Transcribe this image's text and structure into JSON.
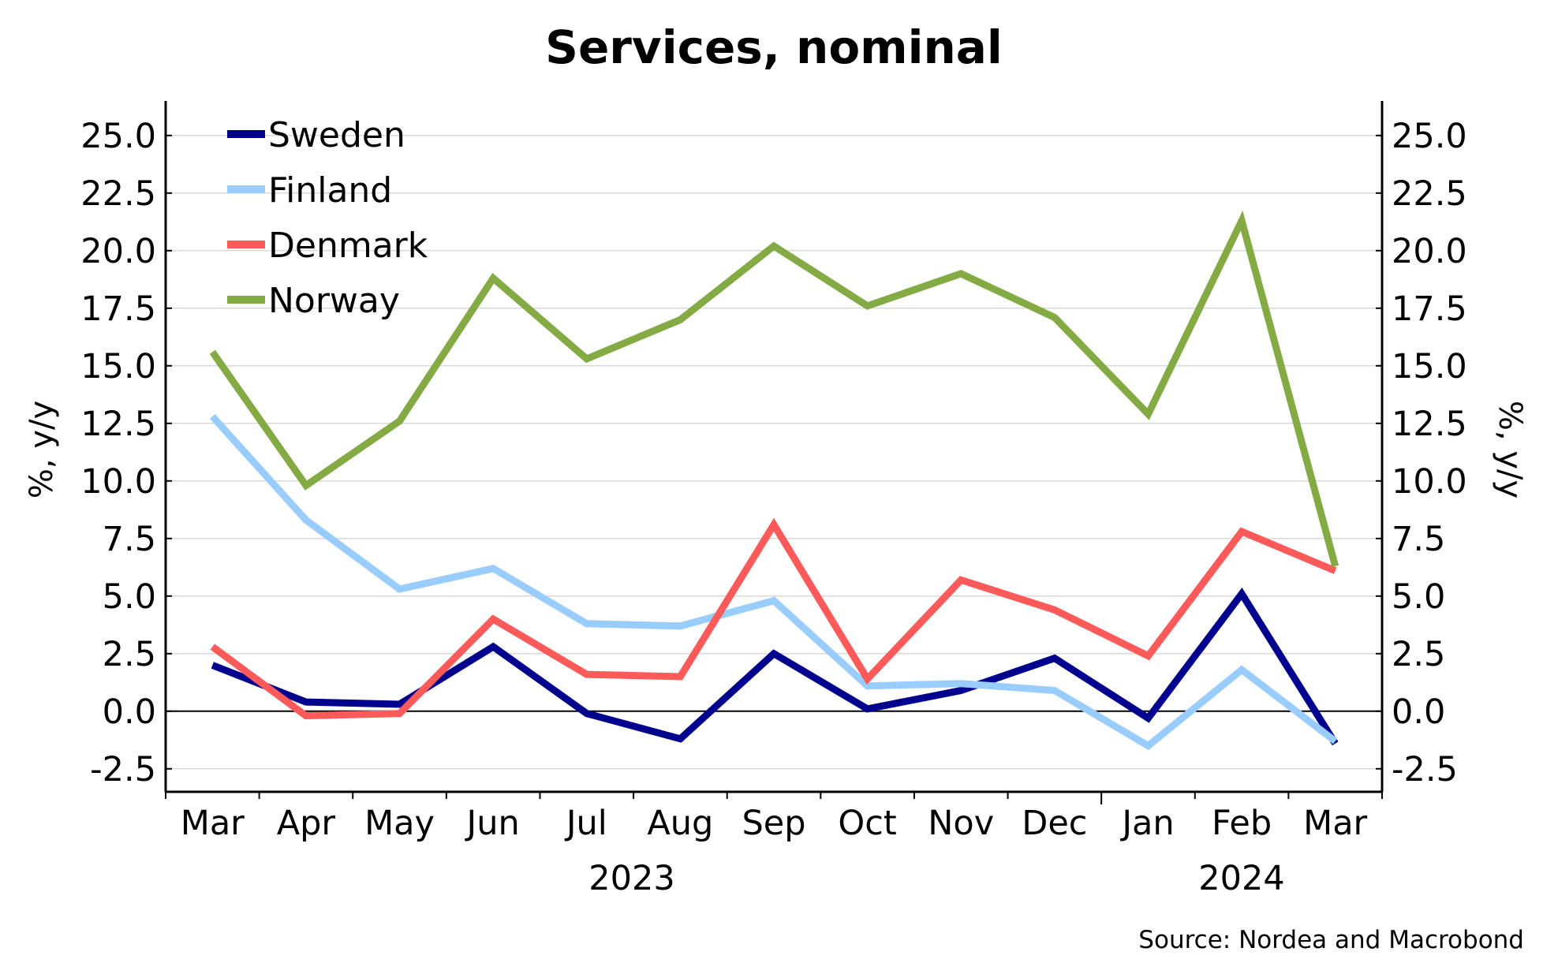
{
  "chart_data": {
    "type": "line",
    "title": "Services, nominal",
    "ylabel_left": "%, y/y",
    "ylabel_right": "%, y/y",
    "ylim": [
      -3.5,
      26.5
    ],
    "yticks": [
      "25.0",
      "22.5",
      "20.0",
      "17.5",
      "15.0",
      "12.5",
      "10.0",
      "7.5",
      "5.0",
      "2.5",
      "0.0",
      "-2.5"
    ],
    "categories": [
      "Mar",
      "Apr",
      "May",
      "Jun",
      "Jul",
      "Aug",
      "Sep",
      "Oct",
      "Nov",
      "Dec",
      "Jan",
      "Feb",
      "Mar"
    ],
    "year_labels": [
      "2023",
      "2024"
    ],
    "legend_position": "top-left",
    "grid": true,
    "series": [
      {
        "name": "Sweden",
        "color": "#00008f",
        "values": [
          2.0,
          0.4,
          0.3,
          2.8,
          -0.1,
          -1.2,
          2.5,
          0.1,
          0.9,
          2.3,
          -0.3,
          5.1,
          -1.4
        ]
      },
      {
        "name": "Finland",
        "color": "#99ccff",
        "values": [
          12.8,
          8.3,
          5.3,
          6.2,
          3.8,
          3.7,
          4.8,
          1.1,
          1.2,
          0.9,
          -1.5,
          1.8,
          -1.3
        ]
      },
      {
        "name": "Denmark",
        "color": "#ff5a5a",
        "values": [
          2.8,
          -0.2,
          -0.1,
          4.0,
          1.6,
          1.5,
          8.1,
          1.4,
          5.7,
          4.4,
          2.4,
          7.8,
          6.1
        ]
      },
      {
        "name": "Norway",
        "color": "#84aa43",
        "values": [
          15.6,
          9.8,
          12.6,
          18.8,
          15.3,
          17.0,
          20.2,
          17.6,
          19.0,
          17.1,
          12.9,
          21.3,
          6.3
        ]
      }
    ],
    "source": "Source: Nordea and Macrobond"
  }
}
